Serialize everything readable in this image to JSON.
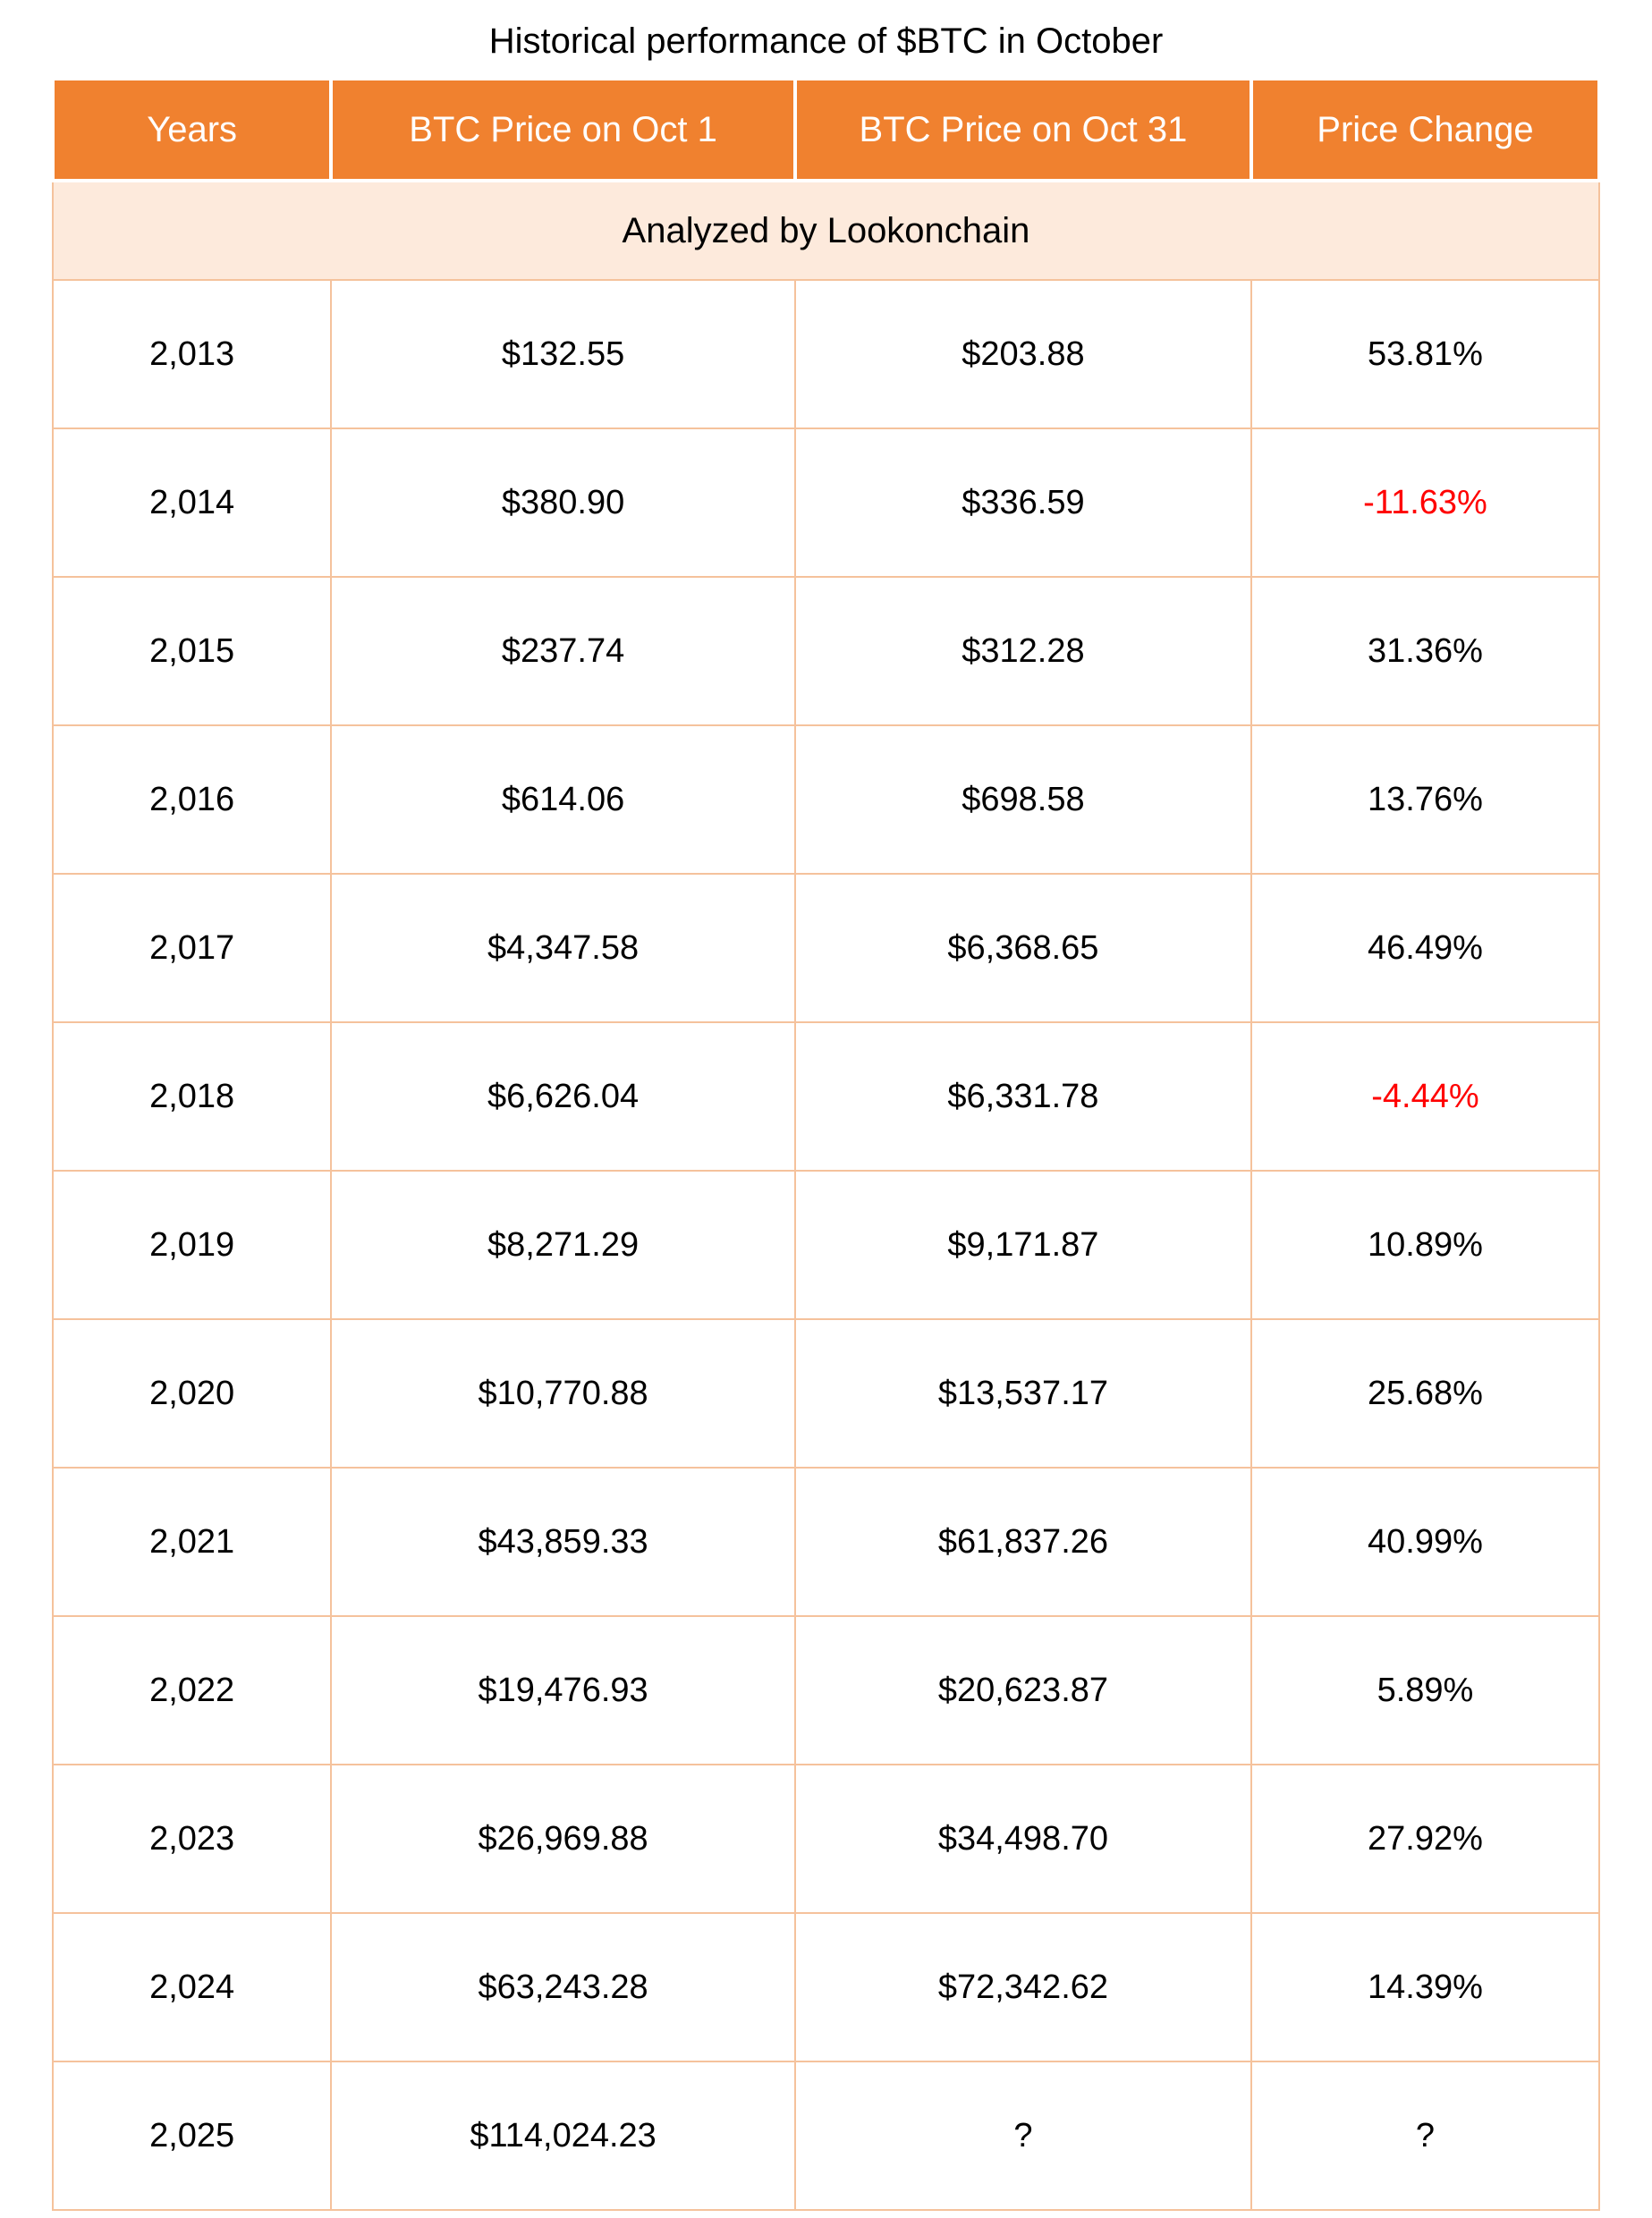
{
  "page": {
    "title": "Historical performance of $BTC in October"
  },
  "table": {
    "headers": [
      "Years",
      "BTC Price on Oct 1",
      "BTC Price on Oct 31",
      "Price Change"
    ],
    "subheader": "Analyzed by Lookonchain",
    "rows": [
      {
        "year": "2,013",
        "oct1": "$132.55",
        "oct31": "$203.88",
        "change": "53.81%",
        "negative": false
      },
      {
        "year": "2,014",
        "oct1": "$380.90",
        "oct31": "$336.59",
        "change": "-11.63%",
        "negative": true
      },
      {
        "year": "2,015",
        "oct1": "$237.74",
        "oct31": "$312.28",
        "change": "31.36%",
        "negative": false
      },
      {
        "year": "2,016",
        "oct1": "$614.06",
        "oct31": "$698.58",
        "change": "13.76%",
        "negative": false
      },
      {
        "year": "2,017",
        "oct1": "$4,347.58",
        "oct31": "$6,368.65",
        "change": "46.49%",
        "negative": false
      },
      {
        "year": "2,018",
        "oct1": "$6,626.04",
        "oct31": "$6,331.78",
        "change": "-4.44%",
        "negative": true
      },
      {
        "year": "2,019",
        "oct1": "$8,271.29",
        "oct31": "$9,171.87",
        "change": "10.89%",
        "negative": false
      },
      {
        "year": "2,020",
        "oct1": "$10,770.88",
        "oct31": "$13,537.17",
        "change": "25.68%",
        "negative": false
      },
      {
        "year": "2,021",
        "oct1": "$43,859.33",
        "oct31": "$61,837.26",
        "change": "40.99%",
        "negative": false
      },
      {
        "year": "2,022",
        "oct1": "$19,476.93",
        "oct31": "$20,623.87",
        "change": "5.89%",
        "negative": false
      },
      {
        "year": "2,023",
        "oct1": "$26,969.88",
        "oct31": "$34,498.70",
        "change": "27.92%",
        "negative": false
      },
      {
        "year": "2,024",
        "oct1": "$63,243.28",
        "oct31": "$72,342.62",
        "change": "14.39%",
        "negative": false
      },
      {
        "year": "2,025",
        "oct1": "$114,024.23",
        "oct31": "?",
        "change": "?",
        "negative": false
      }
    ]
  },
  "colors": {
    "header_bg": "#F0812F",
    "header_text": "#FFFFFF",
    "subheader_bg": "#FDEADC",
    "border": "#F5C29C",
    "negative_text": "#FF0000",
    "body_text": "#000000"
  },
  "chart_data": {
    "type": "table",
    "title": "Historical performance of $BTC in October",
    "subtitle": "Analyzed by Lookonchain",
    "columns": [
      "Years",
      "BTC Price on Oct 1",
      "BTC Price on Oct 31",
      "Price Change"
    ],
    "rows": [
      [
        2013,
        132.55,
        203.88,
        "53.81%"
      ],
      [
        2014,
        380.9,
        336.59,
        "-11.63%"
      ],
      [
        2015,
        237.74,
        312.28,
        "31.36%"
      ],
      [
        2016,
        614.06,
        698.58,
        "13.76%"
      ],
      [
        2017,
        4347.58,
        6368.65,
        "46.49%"
      ],
      [
        2018,
        6626.04,
        6331.78,
        "-4.44%"
      ],
      [
        2019,
        8271.29,
        9171.87,
        "10.89%"
      ],
      [
        2020,
        10770.88,
        13537.17,
        "25.68%"
      ],
      [
        2021,
        43859.33,
        61837.26,
        "40.99%"
      ],
      [
        2022,
        19476.93,
        20623.87,
        "5.89%"
      ],
      [
        2023,
        26969.88,
        34498.7,
        "27.92%"
      ],
      [
        2024,
        63243.28,
        72342.62,
        "14.39%"
      ],
      [
        2025,
        114024.23,
        null,
        null
      ]
    ]
  }
}
